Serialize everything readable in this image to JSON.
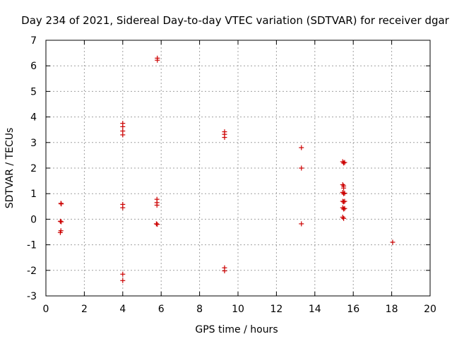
{
  "chart_data": {
    "type": "scatter",
    "title": "Day 234 of 2021, Sidereal Day-to-day VTEC variation (SDTVAR) for receiver dgar",
    "xlabel": "GPS time / hours",
    "ylabel": "SDTVAR / TECUs",
    "xlim": [
      0,
      20
    ],
    "ylim": [
      -3,
      7
    ],
    "xticks": [
      0,
      2,
      4,
      6,
      8,
      10,
      12,
      14,
      16,
      18,
      20
    ],
    "yticks": [
      -3,
      -2,
      -1,
      0,
      1,
      2,
      3,
      4,
      5,
      6,
      7
    ],
    "grid": true,
    "marker": "+",
    "color": "#cc0000",
    "series": [
      {
        "name": "SDTVAR",
        "points": [
          [
            0.78,
            0.62
          ],
          [
            0.8,
            0.6
          ],
          [
            0.75,
            -0.08
          ],
          [
            0.8,
            -0.1
          ],
          [
            0.78,
            -0.45
          ],
          [
            0.75,
            -0.52
          ],
          [
            4.0,
            3.75
          ],
          [
            4.0,
            3.62
          ],
          [
            4.0,
            3.45
          ],
          [
            4.0,
            3.3
          ],
          [
            4.0,
            0.58
          ],
          [
            4.0,
            0.45
          ],
          [
            4.0,
            -2.15
          ],
          [
            4.0,
            -2.4
          ],
          [
            5.8,
            6.3
          ],
          [
            5.8,
            6.22
          ],
          [
            5.78,
            0.78
          ],
          [
            5.78,
            0.65
          ],
          [
            5.78,
            0.55
          ],
          [
            5.75,
            -0.18
          ],
          [
            5.8,
            -0.2
          ],
          [
            9.3,
            3.42
          ],
          [
            9.3,
            3.32
          ],
          [
            9.3,
            3.2
          ],
          [
            9.3,
            -1.9
          ],
          [
            9.3,
            -2.02
          ],
          [
            13.3,
            2.8
          ],
          [
            13.3,
            2.0
          ],
          [
            13.3,
            -0.18
          ],
          [
            15.45,
            2.25
          ],
          [
            15.5,
            2.2
          ],
          [
            15.55,
            2.22
          ],
          [
            15.45,
            1.35
          ],
          [
            15.5,
            1.3
          ],
          [
            15.5,
            1.22
          ],
          [
            15.45,
            1.05
          ],
          [
            15.5,
            1.0
          ],
          [
            15.55,
            1.02
          ],
          [
            15.45,
            0.7
          ],
          [
            15.5,
            0.68
          ],
          [
            15.55,
            0.7
          ],
          [
            15.45,
            0.45
          ],
          [
            15.5,
            0.4
          ],
          [
            15.55,
            0.42
          ],
          [
            15.45,
            0.08
          ],
          [
            15.5,
            0.03
          ],
          [
            18.05,
            -0.9
          ]
        ]
      }
    ]
  }
}
